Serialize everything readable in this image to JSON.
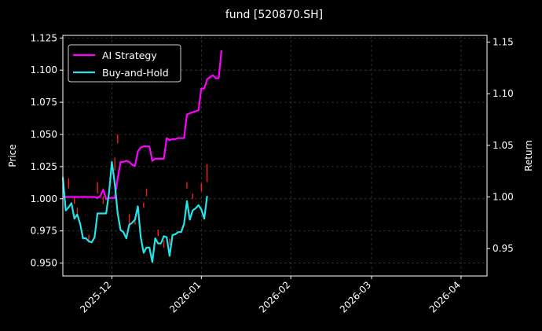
{
  "chart_data": {
    "type": "line",
    "title": "fund [520870.SH]",
    "ylabel_left": "Price",
    "ylabel_right": "Return",
    "grid": true,
    "legend_position": "top-left",
    "x_range": [
      "2025-11-14",
      "2026-04-10"
    ],
    "y_left_range": [
      0.94,
      1.127
    ],
    "y_right_range": [
      0.9235,
      1.1565
    ],
    "x_ticks": [
      {
        "date": "2025-12-01",
        "label": "2025-12"
      },
      {
        "date": "2026-01-01",
        "label": "2026-01"
      },
      {
        "date": "2026-02-01",
        "label": "2026-02"
      },
      {
        "date": "2026-03-01",
        "label": "2026-03"
      },
      {
        "date": "2026-04-01",
        "label": "2026-04"
      }
    ],
    "y_left_ticks": [
      "0.950",
      "0.975",
      "1.000",
      "1.025",
      "1.050",
      "1.075",
      "1.100",
      "1.125"
    ],
    "y_right_ticks": [
      "0.95",
      "1.00",
      "1.05",
      "1.10",
      "1.15"
    ],
    "colors": {
      "background": "#000000",
      "ai_strategy": "#ff00ff",
      "buy_and_hold": "#22e5ec",
      "candle_up": "#ff1a1a",
      "candle_down": "#1aa01a",
      "grid": "#3a3a3a"
    },
    "series": [
      {
        "name": "AI Strategy",
        "axis": "right",
        "points": [
          [
            "2025-11-14",
            1.0
          ],
          [
            "2025-11-15",
            1.0
          ],
          [
            "2025-11-16",
            1.0
          ],
          [
            "2025-11-17",
            1.0
          ],
          [
            "2025-11-18",
            1.0
          ],
          [
            "2025-11-19",
            1.0
          ],
          [
            "2025-11-20",
            1.0
          ],
          [
            "2025-11-21",
            1.0
          ],
          [
            "2025-11-22",
            1.0
          ],
          [
            "2025-11-23",
            1.0
          ],
          [
            "2025-11-24",
            1.0
          ],
          [
            "2025-11-25",
            1.0
          ],
          [
            "2025-11-26",
            0.999
          ],
          [
            "2025-11-27",
            1.001
          ],
          [
            "2025-11-28",
            1.007
          ],
          [
            "2025-11-29",
            0.998
          ],
          [
            "2025-11-30",
            0.999
          ],
          [
            "2025-12-01",
            0.999
          ],
          [
            "2025-12-02",
            0.999
          ],
          [
            "2025-12-03",
            1.018
          ],
          [
            "2025-12-04",
            1.034
          ],
          [
            "2025-12-05",
            1.034
          ],
          [
            "2025-12-06",
            1.035
          ],
          [
            "2025-12-07",
            1.034
          ],
          [
            "2025-12-08",
            1.031
          ],
          [
            "2025-12-09",
            1.03
          ],
          [
            "2025-12-10",
            1.044
          ],
          [
            "2025-12-11",
            1.048
          ],
          [
            "2025-12-12",
            1.049
          ],
          [
            "2025-12-13",
            1.049
          ],
          [
            "2025-12-14",
            1.049
          ],
          [
            "2025-12-15",
            1.035
          ],
          [
            "2025-12-16",
            1.037
          ],
          [
            "2025-12-17",
            1.037
          ],
          [
            "2025-12-18",
            1.037
          ],
          [
            "2025-12-19",
            1.037
          ],
          [
            "2025-12-20",
            1.057
          ],
          [
            "2025-12-21",
            1.055
          ],
          [
            "2025-12-22",
            1.056
          ],
          [
            "2025-12-23",
            1.056
          ],
          [
            "2025-12-24",
            1.057
          ],
          [
            "2025-12-25",
            1.057
          ],
          [
            "2025-12-26",
            1.057
          ],
          [
            "2025-12-27",
            1.08
          ],
          [
            "2025-12-28",
            1.081
          ],
          [
            "2025-12-29",
            1.082
          ],
          [
            "2025-12-30",
            1.083
          ],
          [
            "2025-12-31",
            1.084
          ],
          [
            "2026-01-01",
            1.105
          ],
          [
            "2026-01-02",
            1.105
          ],
          [
            "2026-01-03",
            1.114
          ],
          [
            "2026-01-04",
            1.116
          ],
          [
            "2026-01-05",
            1.118
          ],
          [
            "2026-01-06",
            1.115
          ],
          [
            "2026-01-07",
            1.115
          ],
          [
            "2026-01-08",
            1.142
          ]
        ]
      },
      {
        "name": "Buy-and-Hold",
        "axis": "right",
        "points": [
          [
            "2025-11-14",
            1.019
          ],
          [
            "2025-11-15",
            0.987
          ],
          [
            "2025-11-16",
            0.99
          ],
          [
            "2025-11-17",
            0.994
          ],
          [
            "2025-11-18",
            0.979
          ],
          [
            "2025-11-19",
            0.983
          ],
          [
            "2025-11-20",
            0.974
          ],
          [
            "2025-11-21",
            0.96
          ],
          [
            "2025-11-22",
            0.96
          ],
          [
            "2025-11-23",
            0.957
          ],
          [
            "2025-11-24",
            0.956
          ],
          [
            "2025-11-25",
            0.961
          ],
          [
            "2025-11-26",
            0.984
          ],
          [
            "2025-11-27",
            0.984
          ],
          [
            "2025-11-28",
            0.984
          ],
          [
            "2025-11-29",
            0.984
          ],
          [
            "2025-11-30",
            1.004
          ],
          [
            "2025-12-01",
            1.034
          ],
          [
            "2025-12-02",
            1.013
          ],
          [
            "2025-12-03",
            0.984
          ],
          [
            "2025-12-04",
            0.968
          ],
          [
            "2025-12-05",
            0.966
          ],
          [
            "2025-12-06",
            0.96
          ],
          [
            "2025-12-07",
            0.973
          ],
          [
            "2025-12-08",
            0.975
          ],
          [
            "2025-12-09",
            0.978
          ],
          [
            "2025-12-10",
            0.991
          ],
          [
            "2025-12-11",
            0.961
          ],
          [
            "2025-12-12",
            0.946
          ],
          [
            "2025-12-13",
            0.951
          ],
          [
            "2025-12-14",
            0.951
          ],
          [
            "2025-12-15",
            0.937
          ],
          [
            "2025-12-16",
            0.96
          ],
          [
            "2025-12-17",
            0.955
          ],
          [
            "2025-12-18",
            0.955
          ],
          [
            "2025-12-19",
            0.962
          ],
          [
            "2025-12-20",
            0.961
          ],
          [
            "2025-12-21",
            0.943
          ],
          [
            "2025-12-22",
            0.963
          ],
          [
            "2025-12-23",
            0.964
          ],
          [
            "2025-12-24",
            0.966
          ],
          [
            "2025-12-25",
            0.966
          ],
          [
            "2025-12-26",
            0.974
          ],
          [
            "2025-12-27",
            0.996
          ],
          [
            "2025-12-28",
            0.978
          ],
          [
            "2025-12-29",
            0.987
          ],
          [
            "2025-12-30",
            0.989
          ],
          [
            "2025-12-31",
            0.992
          ],
          [
            "2026-01-01",
            0.988
          ],
          [
            "2026-01-02",
            0.979
          ],
          [
            "2026-01-03",
            1.001
          ]
        ]
      }
    ],
    "candles": [
      [
        "2025-11-14",
        1.008,
        1.018
      ],
      [
        "2025-11-16",
        1.008,
        1.016
      ],
      [
        "2025-11-18",
        0.996,
        1.002
      ],
      [
        "2025-11-19",
        0.987,
        0.993
      ],
      [
        "2025-11-23",
        0.966,
        0.972
      ],
      [
        "2025-11-26",
        1.004,
        1.013
      ],
      [
        "2025-11-28",
        0.996,
        1.002
      ],
      [
        "2025-12-02",
        1.022,
        1.032
      ],
      [
        "2025-12-03",
        1.043,
        1.05
      ],
      [
        "2025-12-07",
        0.98,
        0.988
      ],
      [
        "2025-12-09",
        0.98,
        0.986
      ],
      [
        "2025-12-12",
        0.993,
        0.997
      ],
      [
        "2025-12-13",
        1.002,
        1.008
      ],
      [
        "2025-12-17",
        0.971,
        0.976
      ],
      [
        "2025-12-19",
        0.962,
        0.968
      ],
      [
        "2025-12-21",
        0.964,
        0.969
      ],
      [
        "2025-12-27",
        1.008,
        1.013
      ],
      [
        "2025-12-29",
        1.0,
        1.004
      ],
      [
        "2026-01-01",
        1.006,
        1.012
      ],
      [
        "2026-01-03",
        1.013,
        1.027
      ]
    ],
    "legend": [
      {
        "label": "AI Strategy",
        "color": "#ff00ff"
      },
      {
        "label": "Buy-and-Hold",
        "color": "#22e5ec"
      }
    ]
  }
}
